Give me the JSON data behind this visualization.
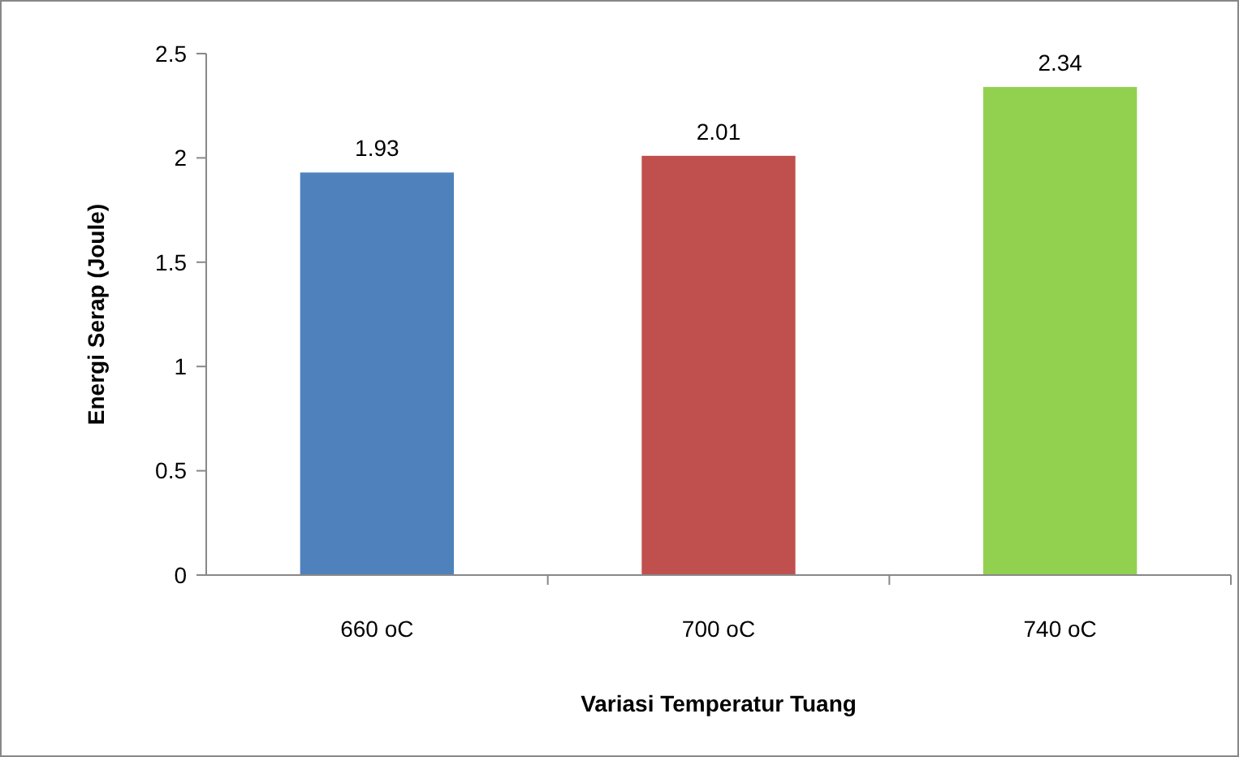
{
  "chart_data": {
    "type": "bar",
    "xlabel": "Variasi Temperatur Tuang",
    "ylabel": "Energi Serap (Joule)",
    "categories": [
      "660 oC",
      "700 oC",
      "740 oC"
    ],
    "values": [
      1.93,
      2.01,
      2.34
    ],
    "colors": [
      "#4f81bd",
      "#c0504d",
      "#92d050"
    ],
    "ylim": [
      0,
      2.5
    ],
    "yticks": [
      0,
      0.5,
      1,
      1.5,
      2,
      2.5
    ],
    "grid": false,
    "data_labels": true
  }
}
